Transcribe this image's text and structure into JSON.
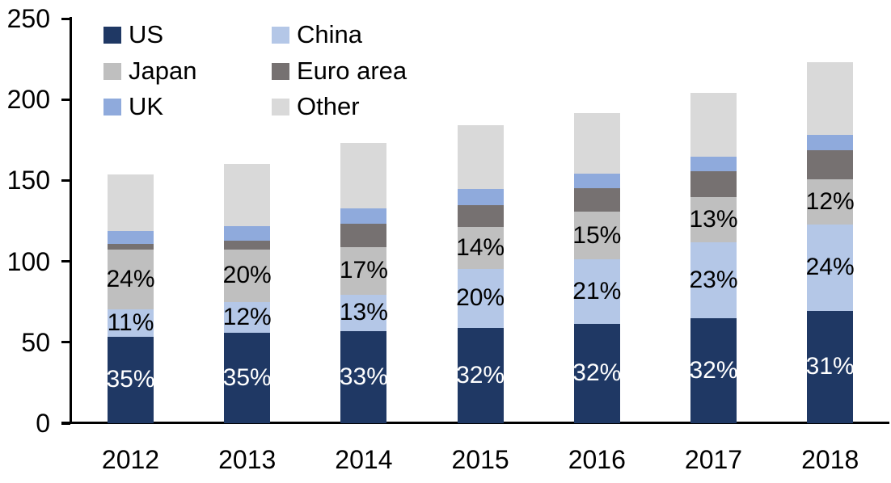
{
  "figure": {
    "background": "#ffffff",
    "text_color": "#000000",
    "axis_color": "#000000"
  },
  "chart_data": {
    "type": "bar",
    "stacked": true,
    "title": "",
    "xlabel": "",
    "ylabel": "",
    "categories": [
      "2012",
      "2013",
      "2014",
      "2015",
      "2016",
      "2017",
      "2018"
    ],
    "ylim": [
      0,
      250
    ],
    "yticks": [
      0,
      50,
      100,
      150,
      200,
      250
    ],
    "grid": false,
    "legend_position": "top-left-two-columns",
    "series": [
      {
        "name": "US",
        "color": "#1f3864",
        "values": [
          53.5,
          56,
          57,
          59,
          61.5,
          65,
          69.5
        ],
        "labels": [
          "35%",
          "35%",
          "33%",
          "32%",
          "32%",
          "32%",
          "31%"
        ],
        "label_color": "#ffffff"
      },
      {
        "name": "China",
        "color": "#b4c7e7",
        "values": [
          17,
          19,
          22.5,
          36.5,
          40,
          47,
          53.5
        ],
        "labels": [
          "11%",
          "12%",
          "13%",
          "20%",
          "21%",
          "23%",
          "24%"
        ],
        "label_color": "#000000"
      },
      {
        "name": "Japan",
        "color": "#bfbfbf",
        "values": [
          37,
          32.5,
          29.5,
          26,
          29,
          27.5,
          27.5
        ],
        "labels": [
          "24%",
          "20%",
          "17%",
          "14%",
          "15%",
          "13%",
          "12%"
        ],
        "label_color": "#000000"
      },
      {
        "name": "Euro area",
        "color": "#767171",
        "values": [
          3.5,
          5.5,
          14.5,
          13,
          14.5,
          16,
          18
        ]
      },
      {
        "name": "UK",
        "color": "#8faadc",
        "values": [
          8,
          9,
          9,
          10,
          9,
          9,
          9.5
        ]
      },
      {
        "name": "Other",
        "color": "#d9d9d9",
        "values": [
          34.5,
          38,
          40.5,
          39.5,
          37.5,
          39.5,
          45
        ]
      }
    ],
    "totals": [
      153.5,
      160,
      173,
      184,
      191.5,
      204,
      223
    ]
  }
}
